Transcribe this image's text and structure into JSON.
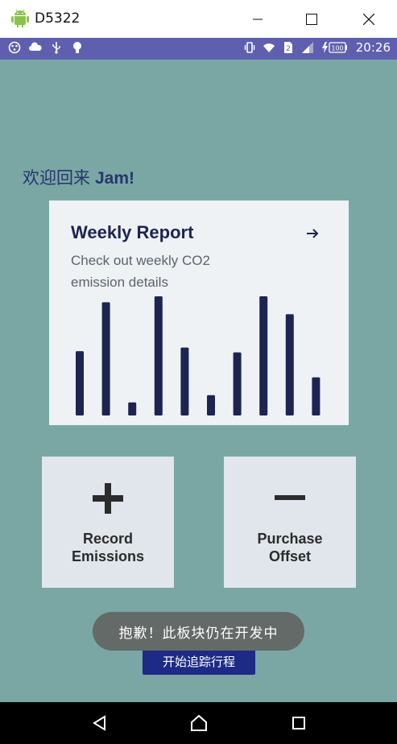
{
  "window": {
    "title": "D5322",
    "icon": "android-icon"
  },
  "statusbar": {
    "left_icons": [
      "settings-dots-icon",
      "cloud-icon",
      "usb-icon",
      "bulb-icon"
    ],
    "right_icons": [
      "vibrate-icon",
      "wifi-icon",
      "sim-2-icon",
      "signal-icon",
      "battery-charging-icon"
    ],
    "sim_label": "2",
    "battery_label": "100",
    "time": "20:26"
  },
  "greeting": {
    "prefix": "欢迎回来",
    "name": "Jam!"
  },
  "report": {
    "title": "Weekly Report",
    "subtitle": "Check out weekly CO2 emission details",
    "arrow_icon": "arrow-right-icon"
  },
  "chart_data": {
    "type": "bar",
    "categories": [
      "",
      "",
      "",
      "",
      "",
      "",
      "",
      "",
      "",
      ""
    ],
    "values": [
      54,
      95,
      11,
      100,
      57,
      17,
      53,
      100,
      85,
      32
    ],
    "ylim": [
      0,
      100
    ],
    "title": "",
    "xlabel": "",
    "ylabel": "",
    "grid": false,
    "color": "#1e2452"
  },
  "actions": {
    "record_label": "Record\nEmissions",
    "record_icon": "plus-icon",
    "purchase_label": "Purchase\nOffset",
    "purchase_icon": "minus-icon"
  },
  "start_button": {
    "label": "开始追踪行程"
  },
  "toast": {
    "text": "抱歉！此板块仍在开发中"
  },
  "navbar": {
    "items": [
      "back-icon",
      "home-icon",
      "recent-apps-icon"
    ]
  },
  "colors": {
    "background": "#7aa7a3",
    "accent": "#1d2a86",
    "statusbar": "#5f5fb0",
    "text_dark": "#1e2450"
  }
}
